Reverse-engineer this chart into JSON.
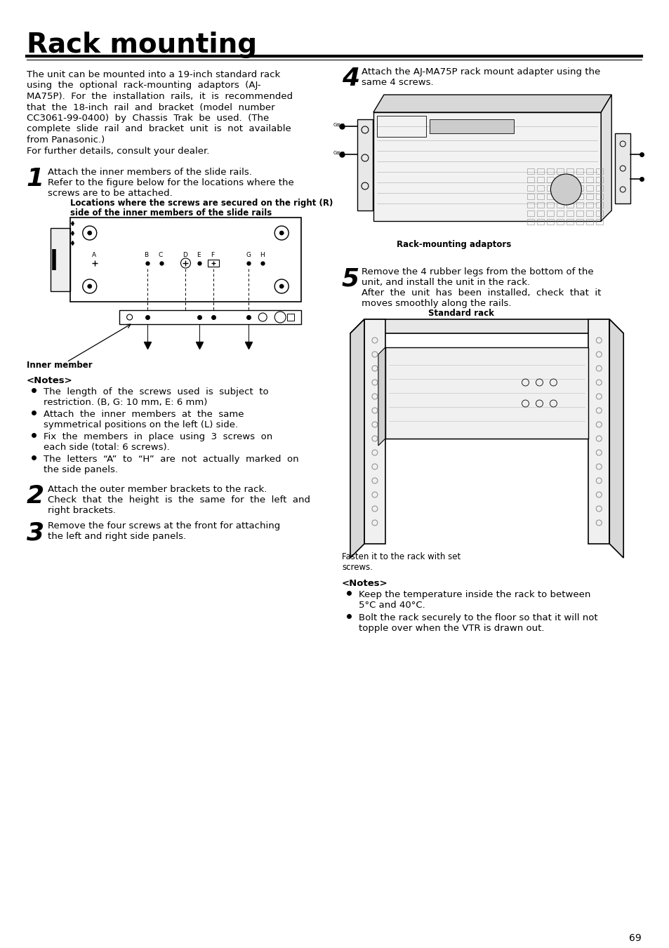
{
  "title": "Rack mounting",
  "bg_color": "#ffffff",
  "text_color": "#000000",
  "page_number": "69",
  "intro_lines": [
    "The unit can be mounted into a 19-inch standard rack",
    "using  the  optional  rack-mounting  adaptors  (AJ-",
    "MA75P).  For  the  installation  rails,  it  is  recommended",
    "that  the  18-inch  rail  and  bracket  (model  number",
    "CC3061-99-0400)  by  Chassis  Trak  be  used.  (The",
    "complete  slide  rail  and  bracket  unit  is  not  available",
    "from Panasonic.)",
    "For further details, consult your dealer."
  ],
  "fig1_caption_line1": "Locations where the screws are secured on the right (R)",
  "fig1_caption_line2": "side of the inner members of the slide rails",
  "inner_member_label": "Inner member",
  "notes1_header": "<Notes>",
  "notes1_items": [
    [
      "The  length  of  the  screws  used  is  subject  to",
      "restriction. (B, G: 10 mm, E: 6 mm)"
    ],
    [
      "Attach  the  inner  members  at  the  same",
      "symmetrical positions on the left (L) side."
    ],
    [
      "Fix  the  members  in  place  using  3  screws  on",
      "each side (total: 6 screws)."
    ],
    [
      "The  letters  “A”  to  “H”  are  not  actually  marked  on",
      "the side panels."
    ]
  ],
  "step2_line1": "Attach the outer member brackets to the rack.",
  "step2_line2": "Check  that  the  height  is  the  same  for  the  left  and",
  "step2_line3": "right brackets.",
  "step3_line1": "Remove the four screws at the front for attaching",
  "step3_line2": "the left and right side panels.",
  "step4_line1": "Attach the AJ-MA75P rack mount adapter using the",
  "step4_line2": "same 4 screws.",
  "rack_adaptor_label": "Rack-mounting adaptors",
  "step5_line1": "Remove the 4 rubber legs from the bottom of the",
  "step5_line2": "unit, and install the unit in the rack.",
  "step5_line3": "After  the  unit  has  been  installed,  check  that  it",
  "step5_line4": "moves smoothly along the rails.",
  "standard_rack_label": "Standard rack",
  "fasten_line1": "Fasten it to the rack with set",
  "fasten_line2": "screws.",
  "notes2_header": "<Notes>",
  "notes2_items": [
    [
      "Keep the temperature inside the rack to between",
      "5°C and 40°C."
    ],
    [
      "Bolt the rack securely to the floor so that it will not",
      "topple over when the VTR is drawn out."
    ]
  ]
}
